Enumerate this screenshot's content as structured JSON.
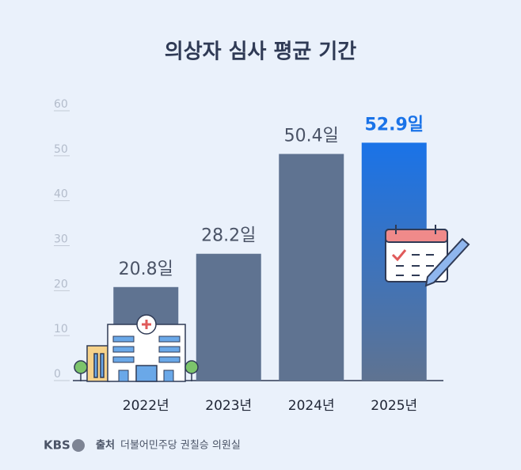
{
  "chart_data": {
    "type": "bar",
    "title": "의상자 심사 평균 기간",
    "categories": [
      "2022년",
      "2023년",
      "2024년",
      "2025년"
    ],
    "values": [
      20.8,
      28.2,
      50.4,
      52.9
    ],
    "value_labels": [
      "20.8일",
      "28.2일",
      "50.4일",
      "52.9일"
    ],
    "color": "#5f7391",
    "colors": [
      "#5f7391",
      "#5f7391",
      "#5f7391",
      "#1a73e8"
    ],
    "ylim": [
      0,
      60
    ],
    "yticks": [
      0,
      10,
      20,
      30,
      40,
      50,
      60
    ],
    "grid": false,
    "logo": "KBS",
    "source_label": "출처",
    "source": "더불어민주당 권칠승 의원실"
  }
}
